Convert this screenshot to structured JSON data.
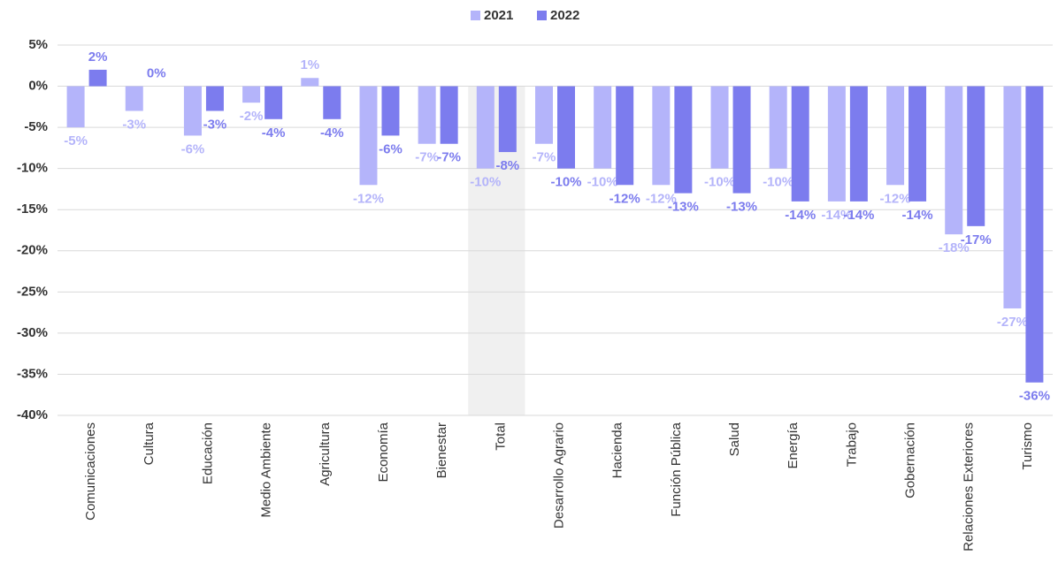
{
  "chart_data": {
    "type": "bar",
    "categories": [
      "Comunicaciones",
      "Cultura",
      "Educación",
      "Medio Ambiente",
      "Agricultura",
      "Economía",
      "Bienestar",
      "Total",
      "Desarrollo Agrario",
      "Hacienda",
      "Función Pública",
      "Salud",
      "Energía",
      "Trabajo",
      "Gobernación",
      "Relaciones Exteriores",
      "Turismo"
    ],
    "series": [
      {
        "name": "2021",
        "color": "#b4b4fa",
        "values": [
          -5,
          -3,
          -6,
          -2,
          1,
          -12,
          -7,
          -10,
          -7,
          -10,
          -12,
          -10,
          -10,
          -14,
          -12,
          -18,
          -27
        ],
        "value_labels": [
          "-5%",
          "-3%",
          "-6%",
          "-2%",
          "1%",
          "-12%",
          "-7%",
          "-10%",
          "-7%",
          "-10%",
          "-12%",
          "-10%",
          "-10%",
          "-14%",
          "-12%",
          "-18%",
          "-27%"
        ]
      },
      {
        "name": "2022",
        "color": "#7c7cee",
        "values": [
          2,
          0,
          -3,
          -4,
          -4,
          -6,
          -7,
          -8,
          -10,
          -12,
          -13,
          -13,
          -14,
          -14,
          -14,
          -17,
          -36
        ],
        "value_labels": [
          "2%",
          "0%",
          "-3%",
          "-4%",
          "-4%",
          "-6%",
          "-7%",
          "-8%",
          "-10%",
          "-12%",
          "-13%",
          "-13%",
          "-14%",
          "-14%",
          "-14%",
          "-17%",
          "-36%"
        ]
      }
    ],
    "highlight": "Total",
    "ylim": [
      -40,
      5
    ],
    "yticks": [
      {
        "value": 5,
        "label": "5%"
      },
      {
        "value": 0,
        "label": "0%"
      },
      {
        "value": -5,
        "label": "-5%"
      },
      {
        "value": -10,
        "label": "-10%"
      },
      {
        "value": -15,
        "label": "-15%"
      },
      {
        "value": -20,
        "label": "-20%"
      },
      {
        "value": -25,
        "label": "-25%"
      },
      {
        "value": -30,
        "label": "-30%"
      },
      {
        "value": -35,
        "label": "-35%"
      },
      {
        "value": -40,
        "label": "-40%"
      }
    ],
    "grid": true,
    "legend": "top"
  }
}
